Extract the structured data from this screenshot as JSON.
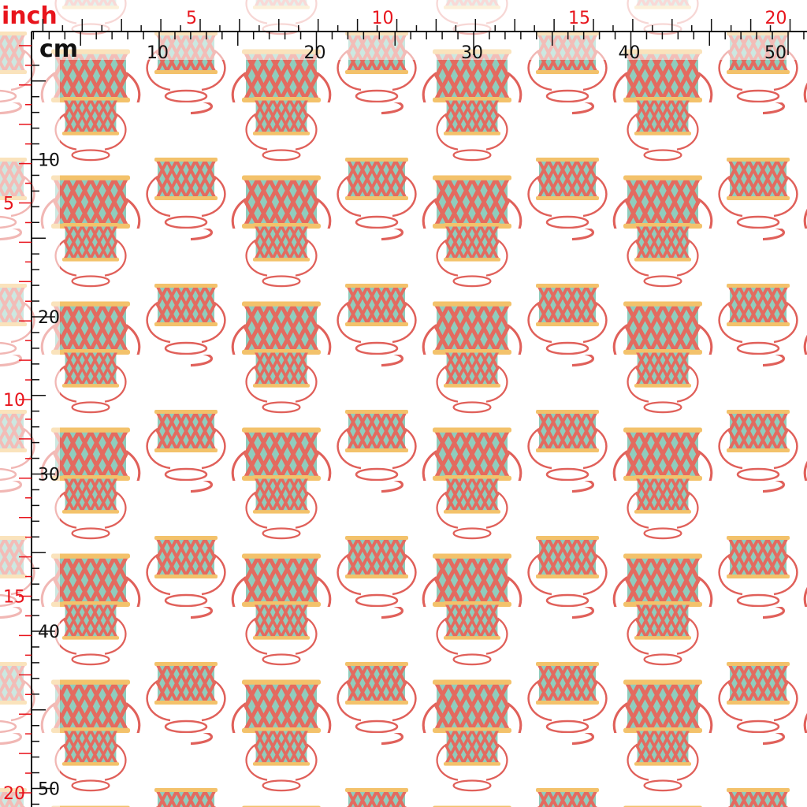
{
  "ruler": {
    "inch_unit": "inch",
    "cm_unit": "cm",
    "top_inch_labels": [
      5,
      10,
      15,
      20
    ],
    "top_cm_labels": [
      10,
      20,
      30,
      40,
      50
    ],
    "left_inch_labels": [
      5,
      10,
      15,
      20
    ],
    "left_cm_labels": [
      10,
      20,
      30,
      40,
      50
    ]
  }
}
